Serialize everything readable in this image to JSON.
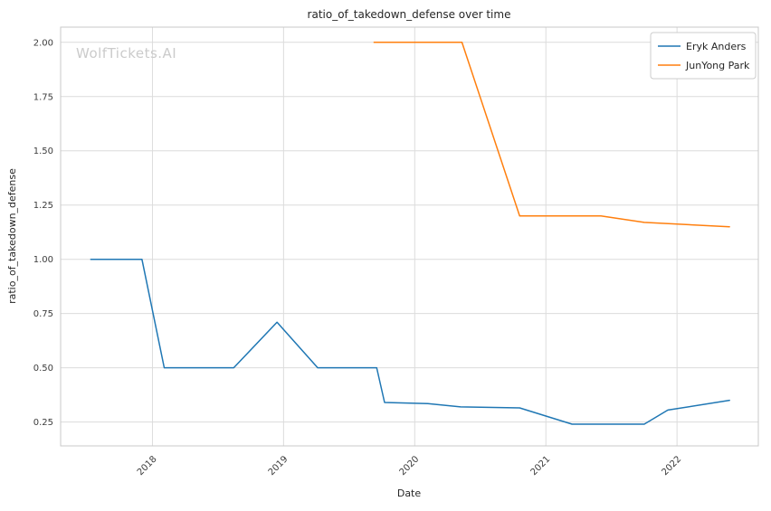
{
  "title": "ratio_of_takedown_defense over time",
  "watermark": "WolfTickets.AI",
  "xlabel": "Date",
  "ylabel": "ratio_of_takedown_defense",
  "legend": [
    {
      "label": "Eryk Anders",
      "color": "#1f77b4"
    },
    {
      "label": "JunYong Park",
      "color": "#ff7f0e"
    }
  ],
  "chart_data": {
    "type": "line",
    "title": "ratio_of_takedown_defense over time",
    "xlabel": "Date",
    "ylabel": "ratio_of_takedown_defense",
    "grid": true,
    "legend_position": "upper right",
    "x_ticks": [
      2018,
      2019,
      2020,
      2021,
      2022
    ],
    "y_ticks": [
      0.25,
      0.5,
      0.75,
      1.0,
      1.25,
      1.5,
      1.75,
      2.0
    ],
    "xlim": [
      2017.3,
      2022.62
    ],
    "ylim": [
      0.14,
      2.07
    ],
    "series": [
      {
        "name": "Eryk Anders",
        "color": "#1f77b4",
        "points": [
          [
            2017.53,
            1.0
          ],
          [
            2017.92,
            1.0
          ],
          [
            2018.09,
            0.5
          ],
          [
            2018.62,
            0.5
          ],
          [
            2018.95,
            0.71
          ],
          [
            2019.26,
            0.5
          ],
          [
            2019.71,
            0.5
          ],
          [
            2019.77,
            0.34
          ],
          [
            2020.1,
            0.335
          ],
          [
            2020.35,
            0.32
          ],
          [
            2020.8,
            0.315
          ],
          [
            2021.2,
            0.24
          ],
          [
            2021.75,
            0.24
          ],
          [
            2021.93,
            0.305
          ],
          [
            2022.4,
            0.35
          ]
        ]
      },
      {
        "name": "JunYong Park",
        "color": "#ff7f0e",
        "points": [
          [
            2019.69,
            2.0
          ],
          [
            2020.36,
            2.0
          ],
          [
            2020.8,
            1.2
          ],
          [
            2021.42,
            1.2
          ],
          [
            2021.75,
            1.17
          ],
          [
            2022.4,
            1.15
          ]
        ]
      }
    ]
  }
}
